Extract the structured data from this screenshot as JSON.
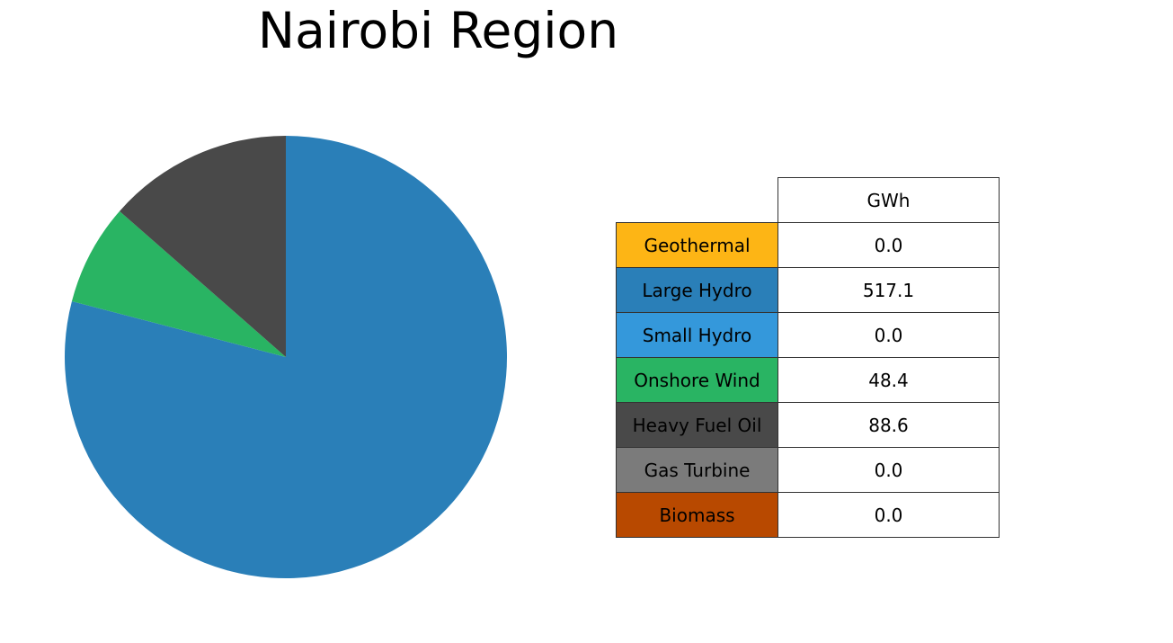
{
  "chart_data": {
    "type": "pie",
    "title": "Nairobi Region",
    "start_angle_deg": 90,
    "direction": "clockwise",
    "unit": "GWh",
    "slices": [
      {
        "label": "Geothermal",
        "value": 0.0,
        "color": "#FDB515"
      },
      {
        "label": "Large Hydro",
        "value": 517.1,
        "color": "#2A7FB8"
      },
      {
        "label": "Small Hydro",
        "value": 0.0,
        "color": "#3498DB"
      },
      {
        "label": "Onshore Wind",
        "value": 48.4,
        "color": "#29B463"
      },
      {
        "label": "Heavy Fuel Oil",
        "value": 88.6,
        "color": "#494949"
      },
      {
        "label": "Gas Turbine",
        "value": 0.0,
        "color": "#7B7B7B"
      },
      {
        "label": "Biomass",
        "value": 0.0,
        "color": "#B84900"
      }
    ]
  },
  "table": {
    "column_header": "GWh",
    "rows": [
      {
        "label": "Geothermal",
        "value": "0.0",
        "color": "#FDB515"
      },
      {
        "label": "Large Hydro",
        "value": "517.1",
        "color": "#2A7FB8"
      },
      {
        "label": "Small Hydro",
        "value": "0.0",
        "color": "#3498DB"
      },
      {
        "label": "Onshore Wind",
        "value": "48.4",
        "color": "#29B463"
      },
      {
        "label": "Heavy Fuel Oil",
        "value": "88.6",
        "color": "#494949"
      },
      {
        "label": "Gas Turbine",
        "value": "0.0",
        "color": "#7B7B7B"
      },
      {
        "label": "Biomass",
        "value": "0.0",
        "color": "#B84900"
      }
    ]
  }
}
